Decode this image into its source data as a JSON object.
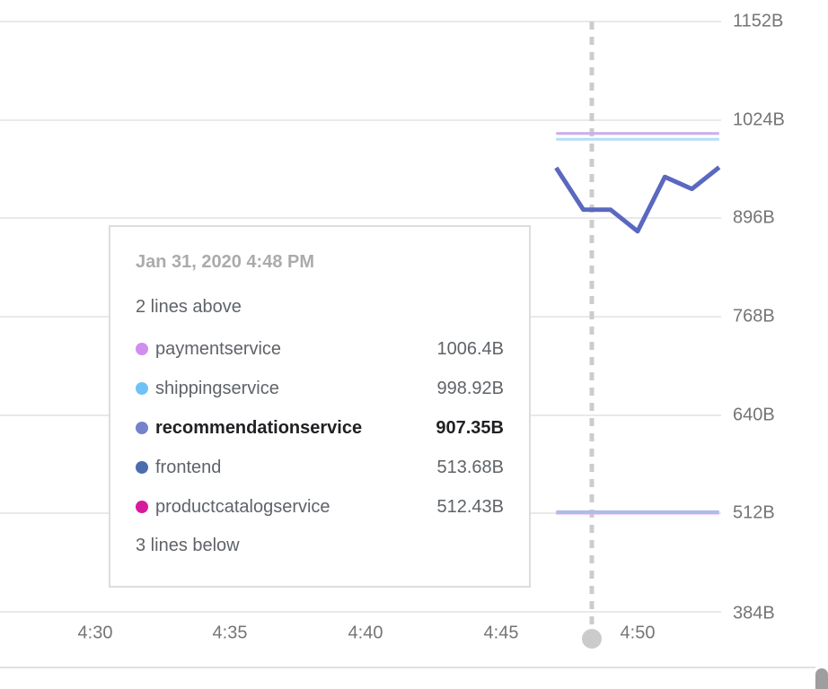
{
  "chart": {
    "y_axis": {
      "ticks": [
        "1152B",
        "1024B",
        "896B",
        "768B",
        "640B",
        "512B",
        "384B"
      ]
    },
    "x_axis": {
      "ticks": [
        "4:30",
        "4:35",
        "4:40",
        "4:45",
        "4:50"
      ]
    }
  },
  "tooltip": {
    "timestamp": "Jan 31, 2020 4:48 PM",
    "lines_above": "2 lines above",
    "lines_below": "3 lines below",
    "rows": [
      {
        "label": "paymentservice",
        "value": "1006.4B",
        "color": "#cf8ef0",
        "emphasis": false
      },
      {
        "label": "shippingservice",
        "value": "998.92B",
        "color": "#6fc2f7",
        "emphasis": false
      },
      {
        "label": "recommendationservice",
        "value": "907.35B",
        "color": "#7582cd",
        "emphasis": true
      },
      {
        "label": "frontend",
        "value": "513.68B",
        "color": "#4c6cae",
        "emphasis": false
      },
      {
        "label": "productcatalogservice",
        "value": "512.43B",
        "color": "#d81b9e",
        "emphasis": false
      }
    ]
  },
  "chart_data": {
    "type": "line",
    "x": [
      "4:47",
      "4:48",
      "4:49",
      "4:50",
      "4:51",
      "4:52",
      "4:53"
    ],
    "x_axis_ticks": [
      "4:30",
      "4:35",
      "4:40",
      "4:45",
      "4:50"
    ],
    "y_axis_ticks": [
      "1152B",
      "1024B",
      "896B",
      "768B",
      "640B",
      "512B",
      "384B"
    ],
    "ylim": [
      384,
      1152
    ],
    "unit": "B",
    "grid": true,
    "legend_position": "tooltip",
    "series": [
      {
        "name": "paymentservice",
        "color": "#ccadea",
        "stroke_width": 3,
        "values": [
          1006.4,
          1006.4,
          1006.4,
          1006.4,
          1006.4,
          1006.4,
          1006.4
        ]
      },
      {
        "name": "shippingservice",
        "color": "#b4ddf8",
        "stroke_width": 3,
        "values": [
          998.92,
          998.92,
          998.92,
          998.92,
          998.92,
          998.92,
          998.92
        ]
      },
      {
        "name": "productcatalogservice",
        "color": "#e3aedd",
        "stroke_width": 3,
        "values": [
          512.43,
          512.43,
          512.43,
          512.43,
          512.43,
          512.43,
          512.43
        ]
      },
      {
        "name": "frontend",
        "color": "#aebce8",
        "stroke_width": 4,
        "values": [
          513.68,
          513.68,
          513.68,
          513.68,
          513.68,
          513.68,
          513.68
        ]
      },
      {
        "name": "recommendationservice",
        "color": "#5b68c0",
        "stroke_width": 5,
        "emphasis": true,
        "values": [
          961.8,
          907.35,
          907.2,
          879.1,
          949.9,
          934.2,
          962.3
        ]
      }
    ],
    "annotations": {
      "crosshair_time": "4:48",
      "crosshair_label": "Jan 31, 2020 4:48 PM",
      "lines_above_note": "2 lines above",
      "lines_below_note": "3 lines below"
    }
  },
  "colors": {
    "grid": "#e9e9e9",
    "axis_label": "#757575",
    "crosshair": "#cccccc",
    "crosshair_dot": "#cbcbcb",
    "tooltip_border": "#dddddd",
    "tooltip_header_text": "#ababab",
    "tooltip_text": "#5f6368",
    "tooltip_emphasis_text": "#202124",
    "scrollbar_thumb": "#9e9e9e",
    "bottom_border": "#e0e0e0"
  }
}
